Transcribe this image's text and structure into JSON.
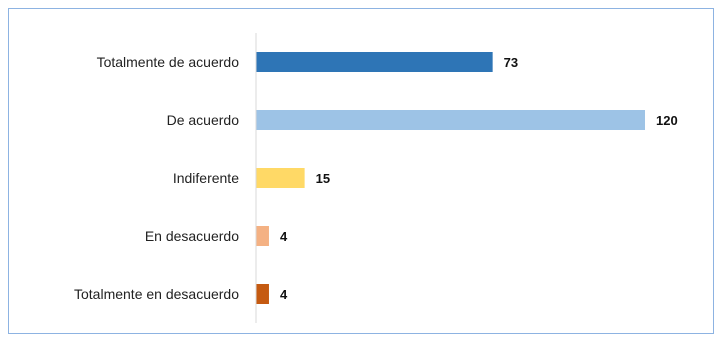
{
  "chart_data": {
    "type": "bar",
    "orientation": "horizontal",
    "categories": [
      "Totalmente de acuerdo",
      "De acuerdo",
      "Indiferente",
      "En desacuerdo",
      "Totalmente en desacuerdo"
    ],
    "values": [
      73,
      120,
      15,
      4,
      4
    ],
    "value_labels": [
      "73",
      "120",
      "15",
      "4",
      "4"
    ],
    "colors": [
      "#2e75b6",
      "#9dc3e6",
      "#ffd966",
      "#f4b183",
      "#c55a11"
    ],
    "xlim": [
      0,
      120
    ],
    "grid": false,
    "legend": "none",
    "title": "",
    "xlabel": "",
    "ylabel": ""
  }
}
